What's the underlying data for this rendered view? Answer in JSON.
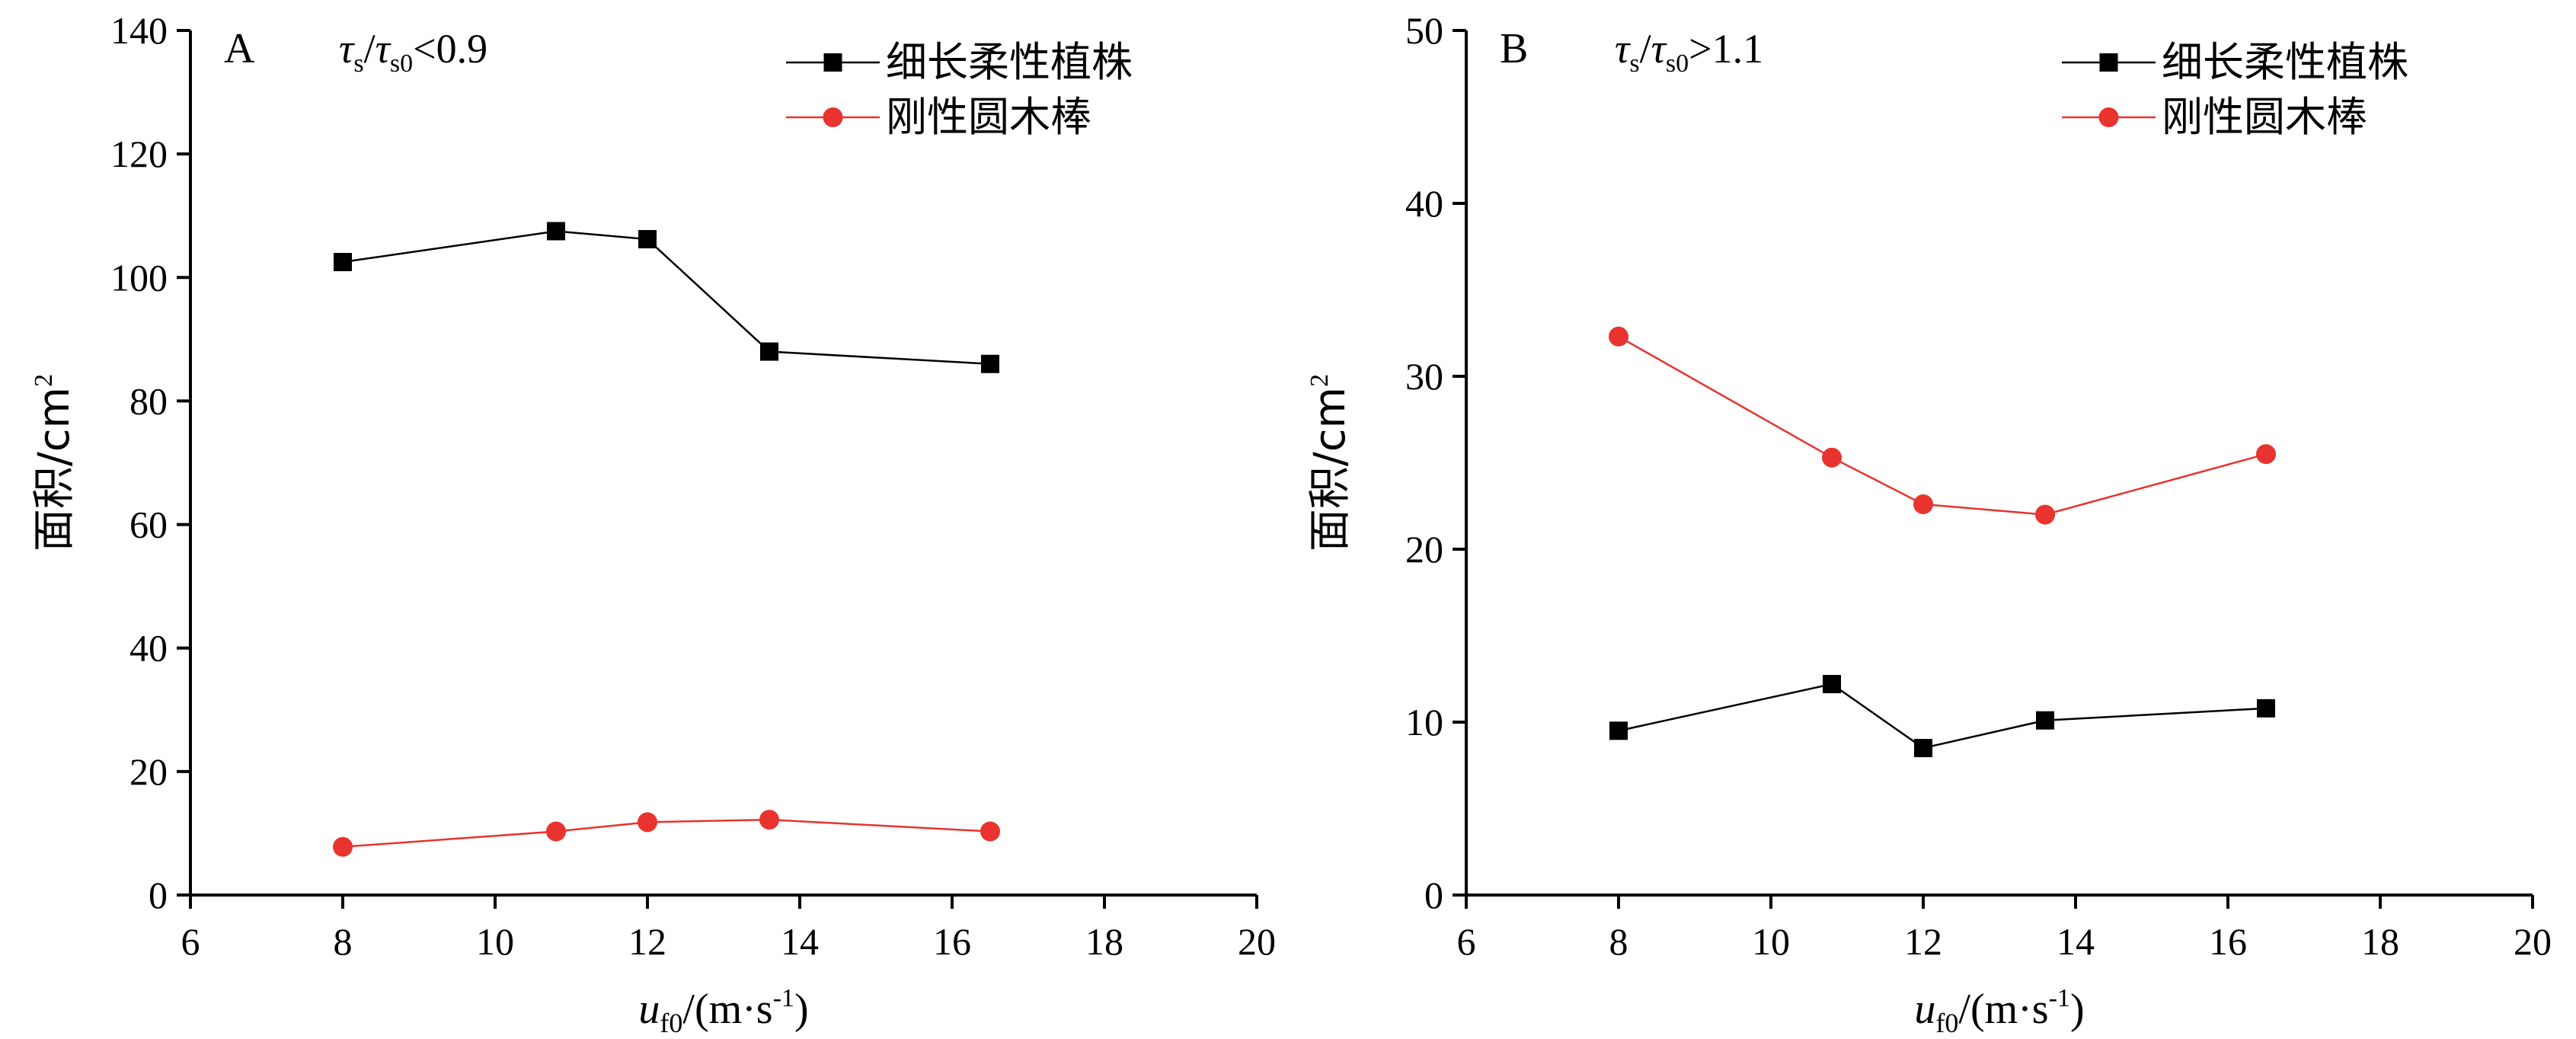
{
  "chart_data": [
    {
      "type": "line",
      "panel": "A",
      "condition": {
        "left_sym": "τ",
        "left_sub": "s",
        "op_sym": "τ",
        "op_sub": "s0",
        "tail": "<0.9"
      },
      "xlabel": {
        "var": "u",
        "sub": "f0",
        "unit_pre": "/(m·s",
        "unit_sup": "-1",
        "unit_post": ")"
      },
      "ylabel": {
        "text": "面积/cm",
        "sup": "2"
      },
      "xlim": [
        6,
        20
      ],
      "ylim": [
        0,
        140
      ],
      "xticks": [
        6,
        8,
        10,
        12,
        14,
        16,
        18,
        20
      ],
      "yticks": [
        0,
        20,
        40,
        60,
        80,
        100,
        120,
        140
      ],
      "legend_position": "top-right",
      "series": [
        {
          "name": "细长柔性植株",
          "color": "#000000",
          "marker": "square",
          "x": [
            8.0,
            10.8,
            12.0,
            13.6,
            16.5
          ],
          "y": [
            102.5,
            107.5,
            106.2,
            88.0,
            86.0
          ]
        },
        {
          "name": "刚性圆木棒",
          "color": "#e8332e",
          "marker": "circle",
          "x": [
            8.0,
            10.8,
            12.0,
            13.6,
            16.5
          ],
          "y": [
            7.8,
            10.3,
            11.8,
            12.2,
            10.3
          ]
        }
      ]
    },
    {
      "type": "line",
      "panel": "B",
      "condition": {
        "left_sym": "τ",
        "left_sub": "s",
        "op_sym": "τ",
        "op_sub": "s0",
        "tail": ">1.1"
      },
      "xlabel": {
        "var": "u",
        "sub": "f0",
        "unit_pre": "/(m·s",
        "unit_sup": "-1",
        "unit_post": ")"
      },
      "ylabel": {
        "text": "面积/cm",
        "sup": "2"
      },
      "xlim": [
        6,
        20
      ],
      "ylim": [
        0,
        50
      ],
      "xticks": [
        6,
        8,
        10,
        12,
        14,
        16,
        18,
        20
      ],
      "yticks": [
        0,
        10,
        20,
        30,
        40,
        50
      ],
      "legend_position": "top-right",
      "series": [
        {
          "name": "细长柔性植株",
          "color": "#000000",
          "marker": "square",
          "x": [
            8.0,
            10.8,
            12.0,
            13.6,
            16.5
          ],
          "y": [
            9.5,
            12.2,
            8.5,
            10.1,
            10.8
          ]
        },
        {
          "name": "刚性圆木棒",
          "color": "#e8332e",
          "marker": "circle",
          "x": [
            8.0,
            10.8,
            12.0,
            13.6,
            16.5
          ],
          "y": [
            32.3,
            25.3,
            22.6,
            22.0,
            25.5
          ]
        }
      ]
    }
  ]
}
